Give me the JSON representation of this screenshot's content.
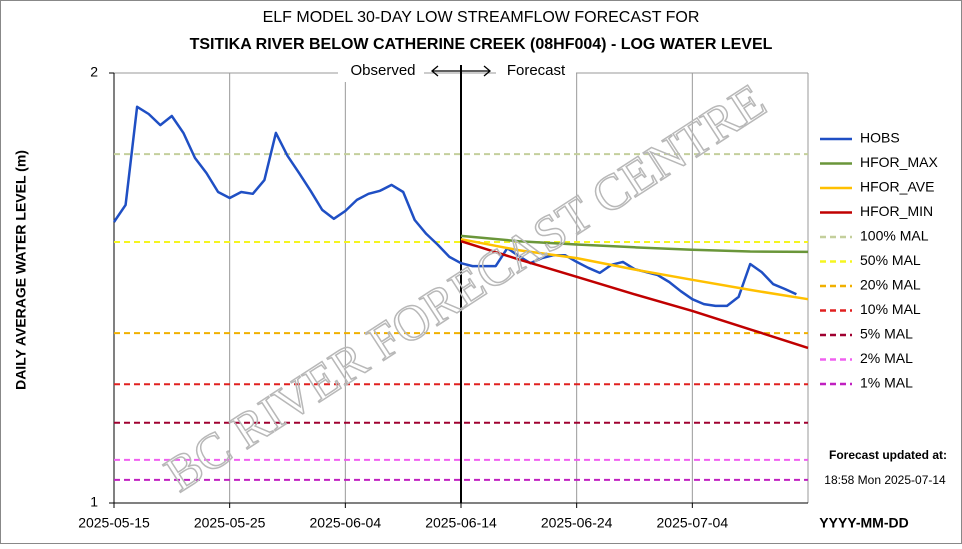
{
  "chart_data": {
    "type": "line",
    "title": "ELF MODEL 30-DAY LOW STREAMFLOW FORECAST FOR",
    "subtitle": "TSITIKA RIVER BELOW CATHERINE CREEK (08HF004) - LOG WATER LEVEL",
    "y_label": "DAILY AVERAGE WATER LEVEL (m)",
    "x_label": "YYYY-MM-DD",
    "log_y": true,
    "ylim": [
      1,
      2
    ],
    "yticks": [
      1,
      2
    ],
    "xlim": [
      "2025-05-15",
      "2025-07-14"
    ],
    "xticks": [
      "2025-05-15",
      "2025-05-25",
      "2025-06-04",
      "2025-06-14",
      "2025-06-24",
      "2025-07-04"
    ],
    "grid": true,
    "legend": "right",
    "forecast_start": "2025-06-14",
    "annotations": {
      "observed": "Observed",
      "forecast": "Forecast",
      "watermark": "BC RIVER FORECAST CENTRE",
      "updated_label": "Forecast updated at:",
      "updated_time": "18:58 Mon 2025-07-14"
    },
    "series": [
      {
        "name": "HOBS",
        "color": "#1f4fc4",
        "x": [
          "2025-05-15",
          "2025-05-16",
          "2025-05-17",
          "2025-05-18",
          "2025-05-19",
          "2025-05-20",
          "2025-05-21",
          "2025-05-22",
          "2025-05-23",
          "2025-05-24",
          "2025-05-25",
          "2025-05-26",
          "2025-05-27",
          "2025-05-28",
          "2025-05-29",
          "2025-05-30",
          "2025-05-31",
          "2025-06-01",
          "2025-06-02",
          "2025-06-03",
          "2025-06-04",
          "2025-06-05",
          "2025-06-06",
          "2025-06-07",
          "2025-06-08",
          "2025-06-09",
          "2025-06-10",
          "2025-06-11",
          "2025-06-12",
          "2025-06-13",
          "2025-06-14",
          "2025-06-15",
          "2025-06-16",
          "2025-06-17",
          "2025-06-18",
          "2025-06-19",
          "2025-06-20",
          "2025-06-21",
          "2025-06-22",
          "2025-06-23",
          "2025-06-24",
          "2025-06-25",
          "2025-06-26",
          "2025-06-27",
          "2025-06-28",
          "2025-06-29",
          "2025-06-30",
          "2025-07-01",
          "2025-07-02",
          "2025-07-03",
          "2025-07-04",
          "2025-07-05",
          "2025-07-06",
          "2025-07-07",
          "2025-07-08",
          "2025-07-09",
          "2025-07-10",
          "2025-07-11",
          "2025-07-12",
          "2025-07-13"
        ],
        "values": [
          1.573,
          1.617,
          1.894,
          1.872,
          1.839,
          1.866,
          1.816,
          1.744,
          1.702,
          1.651,
          1.635,
          1.651,
          1.646,
          1.683,
          1.816,
          1.75,
          1.702,
          1.654,
          1.604,
          1.581,
          1.601,
          1.63,
          1.646,
          1.654,
          1.67,
          1.651,
          1.578,
          1.543,
          1.516,
          1.487,
          1.472,
          1.465,
          1.465,
          1.465,
          1.508,
          1.489,
          1.472,
          1.484,
          1.491,
          1.491,
          1.475,
          1.461,
          1.449,
          1.468,
          1.475,
          1.458,
          1.451,
          1.444,
          1.428,
          1.407,
          1.389,
          1.378,
          1.374,
          1.374,
          1.394,
          1.47,
          1.451,
          1.423,
          1.412,
          1.4
        ]
      },
      {
        "name": "HFOR_MAX",
        "color": "#6a963a",
        "x": [
          "2025-06-14",
          "2025-06-19",
          "2025-06-24",
          "2025-06-29",
          "2025-07-04",
          "2025-07-09",
          "2025-07-14"
        ],
        "values": [
          1.538,
          1.525,
          1.517,
          1.51,
          1.504,
          1.5,
          1.499
        ]
      },
      {
        "name": "HFOR_AVE",
        "color": "#ffc000",
        "x": [
          "2025-06-14",
          "2025-06-19",
          "2025-06-24",
          "2025-06-29",
          "2025-07-04",
          "2025-07-09",
          "2025-07-14"
        ],
        "values": [
          1.53,
          1.503,
          1.484,
          1.457,
          1.433,
          1.41,
          1.389
        ]
      },
      {
        "name": "HFOR_MIN",
        "color": "#c00000",
        "x": [
          "2025-06-14",
          "2025-06-19",
          "2025-06-24",
          "2025-06-29",
          "2025-07-04",
          "2025-07-09",
          "2025-07-14"
        ],
        "values": [
          1.525,
          1.481,
          1.44,
          1.4,
          1.363,
          1.323,
          1.284
        ]
      }
    ],
    "reference_lines": [
      {
        "name": "100% MAL",
        "color": "#c4cf9c",
        "value": 1.755
      },
      {
        "name": "50% MAL",
        "color": "#f5f520",
        "value": 1.523
      },
      {
        "name": "20% MAL",
        "color": "#f0b000",
        "value": 1.315
      },
      {
        "name": "10% MAL",
        "color": "#e02020",
        "value": 1.211
      },
      {
        "name": "5% MAL",
        "color": "#a00030",
        "value": 1.138
      },
      {
        "name": "2% MAL",
        "color": "#f060f0",
        "value": 1.072
      },
      {
        "name": "1% MAL",
        "color": "#c020c0",
        "value": 1.038
      }
    ]
  }
}
